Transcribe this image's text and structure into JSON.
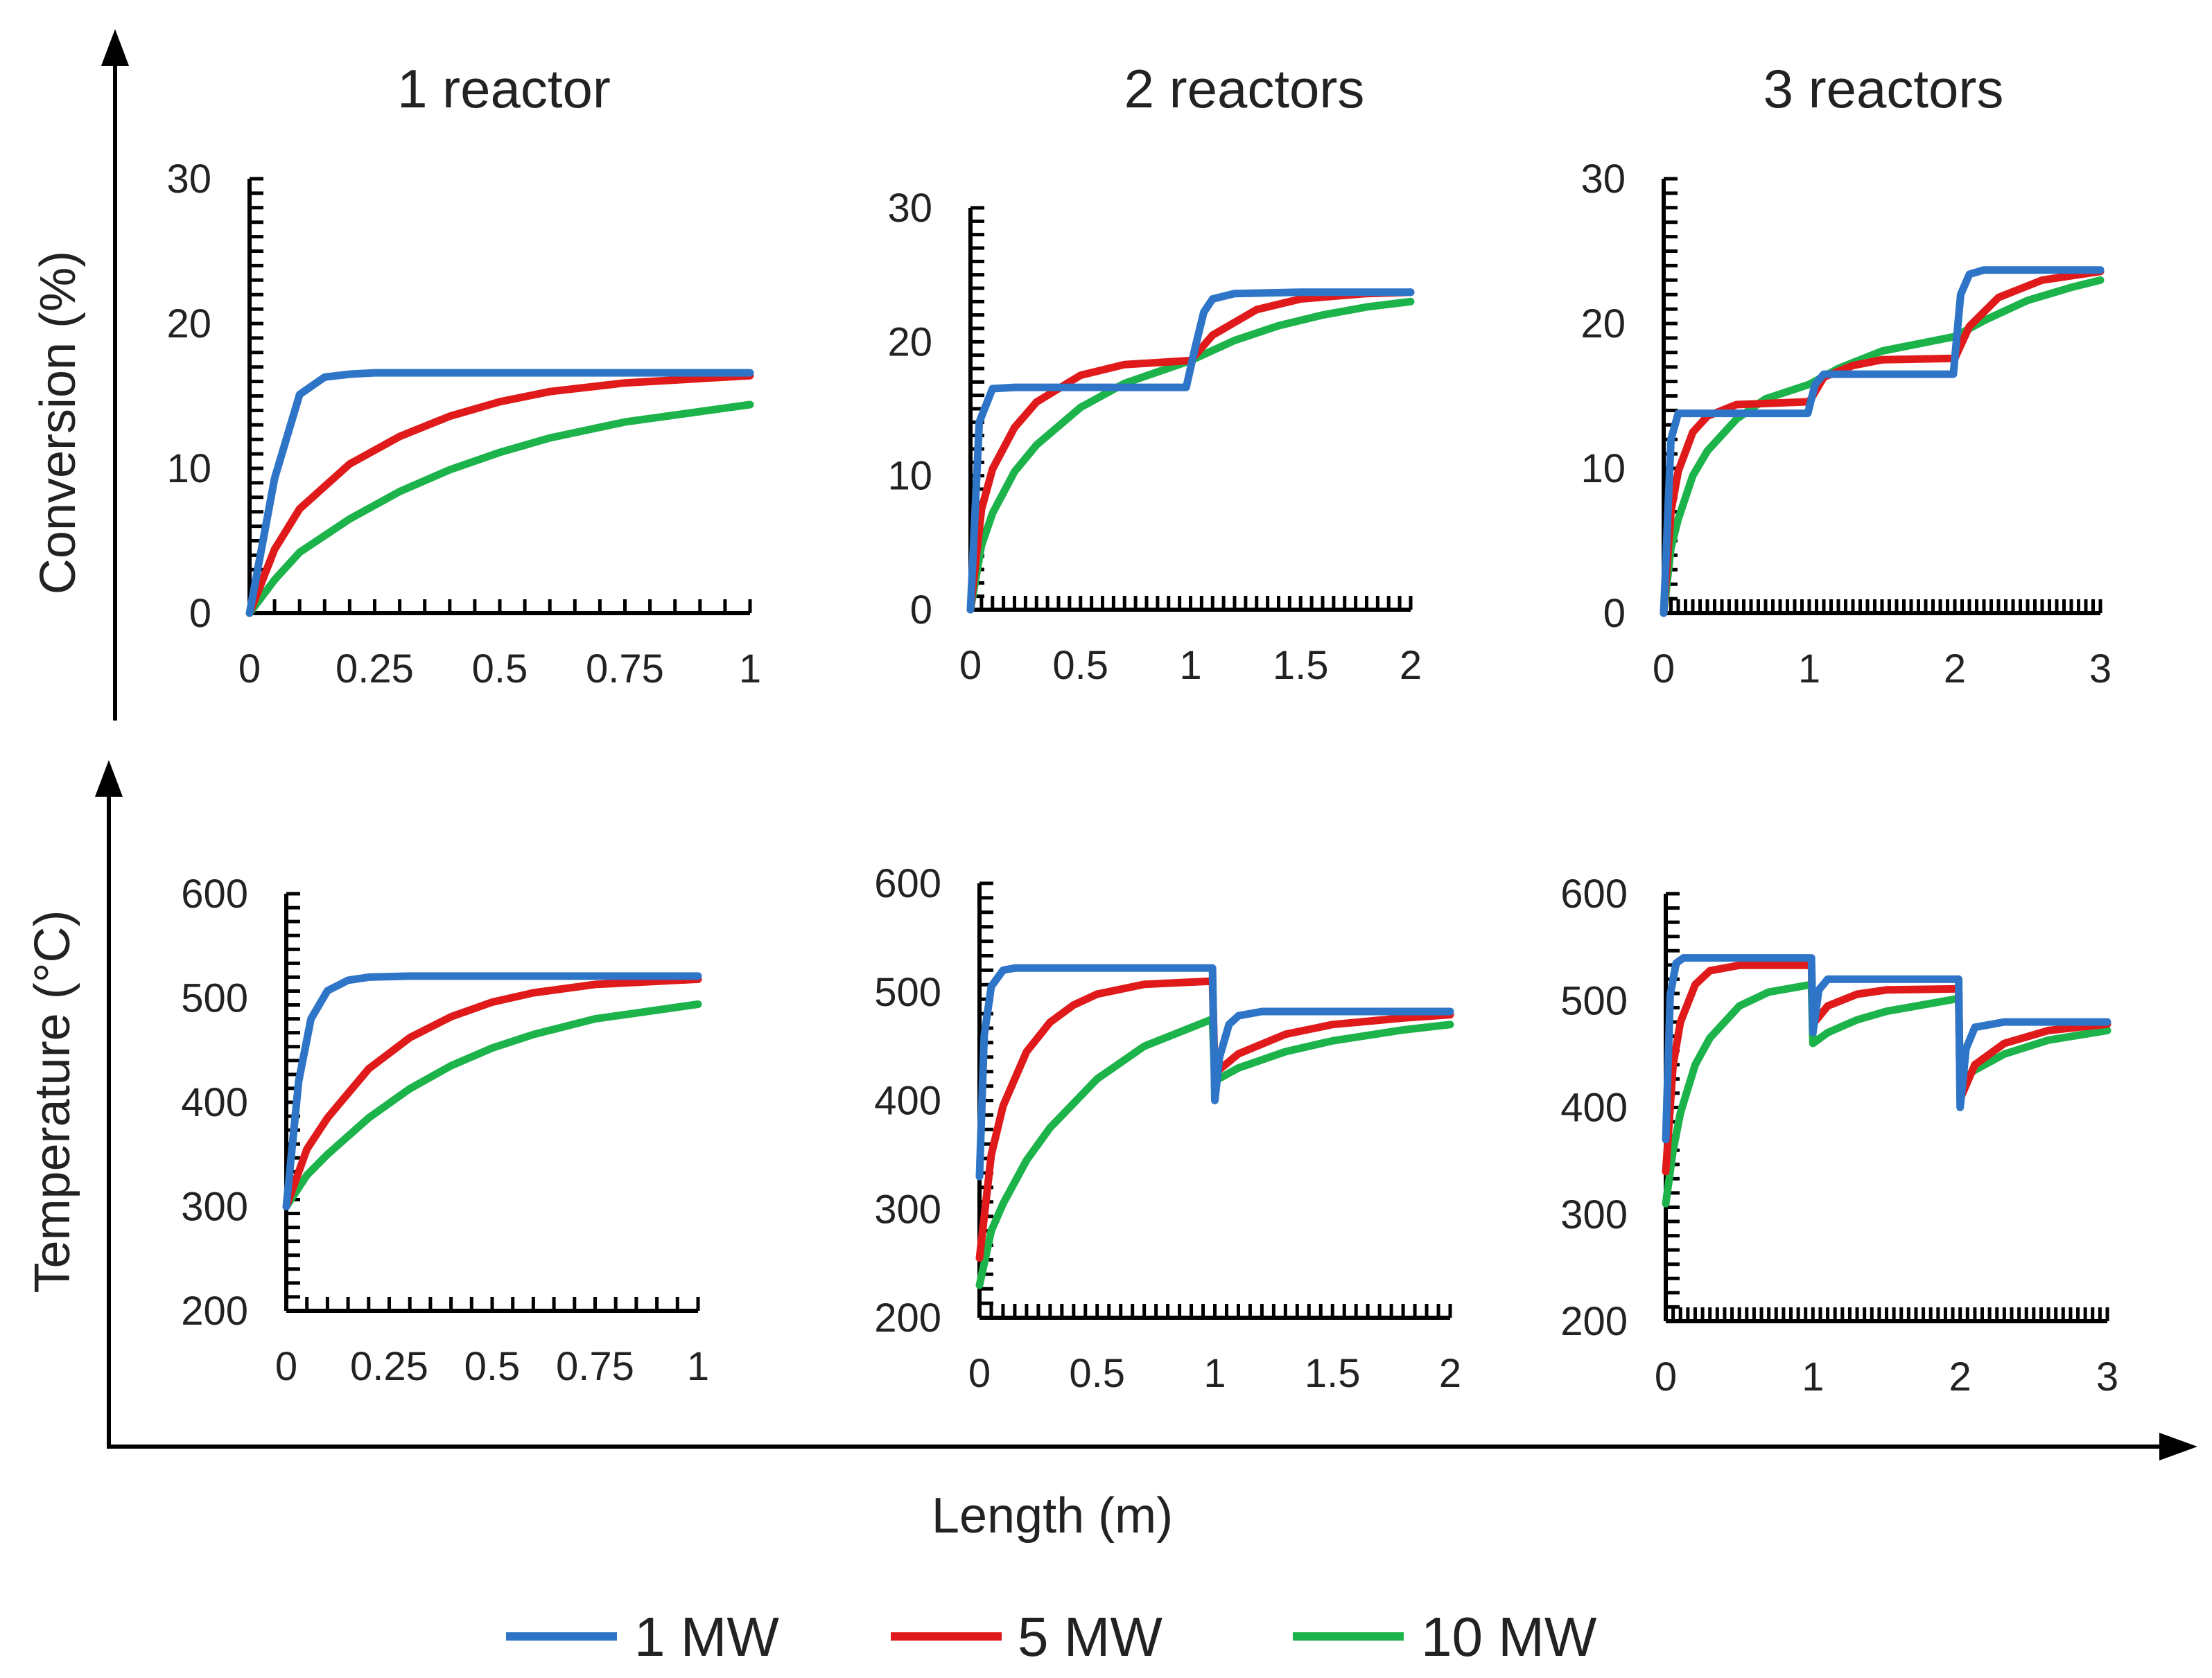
{
  "column_titles": [
    "1 reactor",
    "2 reactors",
    "3 reactors"
  ],
  "axis_titles": {
    "conversion": "Conversion (%)",
    "temperature": "Temperature (°C)",
    "length": "Length (m)"
  },
  "legend": [
    {
      "label": "1 MW",
      "color": "#2E75C8"
    },
    {
      "label": "5 MW",
      "color": "#E01A1A"
    },
    {
      "label": "10 MW",
      "color": "#1DB34B"
    }
  ],
  "chart_data": [
    {
      "type": "line",
      "title": "1 reactor",
      "xlabel": "Length (m)",
      "ylabel": "Conversion (%)",
      "xlim": [
        0,
        1
      ],
      "ylim": [
        0,
        30
      ],
      "xticks": [
        "0",
        "0.25",
        "0.5",
        "0.75",
        "1"
      ],
      "yticks": [
        "0",
        "10",
        "20",
        "30"
      ],
      "series": [
        {
          "name": "1 MW",
          "x": [
            0,
            0.05,
            0.1,
            0.15,
            0.2,
            0.25,
            0.5,
            0.75,
            1
          ],
          "y": [
            0,
            9.3,
            15.1,
            16.3,
            16.5,
            16.6,
            16.6,
            16.6,
            16.6
          ]
        },
        {
          "name": "5 MW",
          "x": [
            0,
            0.05,
            0.1,
            0.2,
            0.3,
            0.4,
            0.5,
            0.6,
            0.75,
            1
          ],
          "y": [
            0,
            4.4,
            7.2,
            10.3,
            12.2,
            13.6,
            14.6,
            15.3,
            15.9,
            16.4
          ]
        },
        {
          "name": "10 MW",
          "x": [
            0,
            0.05,
            0.1,
            0.2,
            0.3,
            0.4,
            0.5,
            0.6,
            0.75,
            1
          ],
          "y": [
            0,
            2.3,
            4.2,
            6.5,
            8.4,
            9.9,
            11.1,
            12.1,
            13.2,
            14.4
          ]
        }
      ]
    },
    {
      "type": "line",
      "title": "2 reactors",
      "xlabel": "Length (m)",
      "ylabel": "Conversion (%)",
      "xlim": [
        0,
        2
      ],
      "ylim": [
        0,
        30
      ],
      "xticks": [
        "0",
        "0.5",
        "1",
        "1.5",
        "2"
      ],
      "yticks": [
        "0",
        "10",
        "20",
        "30"
      ],
      "series": [
        {
          "name": "1 MW",
          "x": [
            0,
            0.04,
            0.1,
            0.2,
            0.5,
            0.98,
            1.02,
            1.06,
            1.1,
            1.2,
            1.5,
            2
          ],
          "y": [
            0,
            14,
            16.5,
            16.6,
            16.6,
            16.6,
            19.5,
            22.2,
            23.2,
            23.6,
            23.7,
            23.7
          ]
        },
        {
          "name": "5 MW",
          "x": [
            0,
            0.05,
            0.1,
            0.2,
            0.3,
            0.5,
            0.7,
            1,
            1.1,
            1.3,
            1.5,
            1.8,
            2
          ],
          "y": [
            0,
            7.5,
            10.5,
            13.6,
            15.5,
            17.5,
            18.3,
            18.6,
            20.5,
            22.4,
            23.2,
            23.6,
            23.7
          ]
        },
        {
          "name": "10 MW",
          "x": [
            0,
            0.05,
            0.1,
            0.2,
            0.3,
            0.5,
            0.7,
            1,
            1.2,
            1.4,
            1.6,
            1.8,
            2
          ],
          "y": [
            0,
            4.8,
            7.2,
            10.3,
            12.3,
            15.1,
            16.9,
            18.6,
            20.1,
            21.2,
            22,
            22.6,
            23
          ]
        }
      ]
    },
    {
      "type": "line",
      "title": "3 reactors",
      "xlabel": "Length (m)",
      "ylabel": "Conversion (%)",
      "xlim": [
        0,
        3
      ],
      "ylim": [
        0,
        30
      ],
      "xticks": [
        "0",
        "1",
        "2",
        "3"
      ],
      "yticks": [
        "0",
        "10",
        "20",
        "30"
      ],
      "series": [
        {
          "name": "1 MW",
          "x": [
            0,
            0.05,
            0.1,
            0.5,
            0.99,
            1.04,
            1.1,
            1.5,
            1.99,
            2.04,
            2.1,
            2.2,
            2.5,
            3
          ],
          "y": [
            0,
            12,
            13.8,
            13.8,
            13.8,
            15.8,
            16.5,
            16.5,
            16.5,
            22,
            23.4,
            23.7,
            23.7,
            23.7
          ]
        },
        {
          "name": "5 MW",
          "x": [
            0,
            0.05,
            0.1,
            0.2,
            0.3,
            0.5,
            1,
            1.1,
            1.3,
            1.5,
            2,
            2.1,
            2.3,
            2.6,
            3
          ],
          "y": [
            0,
            7,
            9.8,
            12.5,
            13.6,
            14.4,
            14.6,
            16.3,
            17.1,
            17.5,
            17.6,
            19.8,
            21.8,
            23,
            23.6
          ]
        },
        {
          "name": "10 MW",
          "x": [
            0,
            0.05,
            0.1,
            0.2,
            0.3,
            0.5,
            0.7,
            1,
            1.2,
            1.5,
            2,
            2.2,
            2.5,
            2.8,
            3
          ],
          "y": [
            0,
            4.5,
            6.5,
            9.5,
            11.2,
            13.4,
            14.8,
            15.8,
            16.9,
            18.1,
            19.1,
            20.2,
            21.6,
            22.5,
            23
          ]
        }
      ]
    },
    {
      "type": "line",
      "title": "1 reactor",
      "xlabel": "Length (m)",
      "ylabel": "Temperature (°C)",
      "xlim": [
        0,
        1
      ],
      "ylim": [
        200,
        600
      ],
      "xticks": [
        "0",
        "0.25",
        "0.5",
        "0.75",
        "1"
      ],
      "yticks": [
        "200",
        "300",
        "400",
        "500",
        "600"
      ],
      "series": [
        {
          "name": "1 MW",
          "x": [
            0,
            0.03,
            0.06,
            0.1,
            0.15,
            0.2,
            0.3,
            0.5,
            1
          ],
          "y": [
            300,
            420,
            480,
            507,
            517,
            520,
            521,
            521,
            521
          ]
        },
        {
          "name": "5 MW",
          "x": [
            0,
            0.05,
            0.1,
            0.2,
            0.3,
            0.4,
            0.5,
            0.6,
            0.75,
            1
          ],
          "y": [
            300,
            355,
            385,
            432,
            462,
            482,
            496,
            505,
            513,
            518
          ]
        },
        {
          "name": "10 MW",
          "x": [
            0,
            0.05,
            0.1,
            0.2,
            0.3,
            0.4,
            0.5,
            0.6,
            0.75,
            1
          ],
          "y": [
            300,
            330,
            350,
            385,
            413,
            435,
            452,
            465,
            480,
            494
          ]
        }
      ]
    },
    {
      "type": "line",
      "title": "2 reactors",
      "xlabel": "Length (m)",
      "ylabel": "Temperature (°C)",
      "xlim": [
        0,
        2
      ],
      "ylim": [
        200,
        600
      ],
      "xticks": [
        "0",
        "0.5",
        "1",
        "1.5",
        "2"
      ],
      "yticks": [
        "200",
        "300",
        "400",
        "500",
        "600"
      ],
      "series": [
        {
          "name": "1 MW",
          "x": [
            0,
            0.02,
            0.05,
            0.1,
            0.15,
            0.3,
            0.5,
            0.99,
            1.0,
            1.02,
            1.06,
            1.1,
            1.2,
            1.5,
            2
          ],
          "y": [
            330,
            460,
            505,
            520,
            522,
            522,
            522,
            522,
            400,
            440,
            470,
            478,
            482,
            482,
            482
          ]
        },
        {
          "name": "5 MW",
          "x": [
            0,
            0.05,
            0.1,
            0.2,
            0.3,
            0.4,
            0.5,
            0.7,
            0.99,
            1.0,
            1.1,
            1.3,
            1.5,
            1.8,
            2
          ],
          "y": [
            255,
            350,
            395,
            445,
            472,
            488,
            498,
            507,
            510,
            425,
            443,
            461,
            470,
            476,
            479
          ]
        },
        {
          "name": "10 MW",
          "x": [
            0,
            0.05,
            0.1,
            0.2,
            0.3,
            0.5,
            0.7,
            0.99,
            1.0,
            1.1,
            1.3,
            1.5,
            1.8,
            2
          ],
          "y": [
            230,
            280,
            305,
            345,
            375,
            420,
            450,
            475,
            418,
            430,
            445,
            455,
            465,
            470
          ]
        }
      ]
    },
    {
      "type": "line",
      "title": "3 reactors",
      "xlabel": "Length (m)",
      "ylabel": "Temperature (°C)",
      "xlim": [
        0,
        3
      ],
      "ylim": [
        200,
        600
      ],
      "xticks": [
        "0",
        "1",
        "2",
        "3"
      ],
      "yticks": [
        "200",
        "300",
        "400",
        "500",
        "600"
      ],
      "series": [
        {
          "name": "1 MW",
          "x": [
            0,
            0.03,
            0.07,
            0.12,
            0.3,
            0.99,
            1.0,
            1.04,
            1.1,
            1.5,
            1.99,
            2.0,
            2.04,
            2.1,
            2.3,
            3
          ],
          "y": [
            370,
            505,
            535,
            540,
            540,
            540,
            470,
            510,
            520,
            520,
            520,
            400,
            455,
            475,
            480,
            480
          ]
        },
        {
          "name": "5 MW",
          "x": [
            0,
            0.05,
            0.1,
            0.2,
            0.3,
            0.5,
            0.99,
            1.0,
            1.1,
            1.3,
            1.5,
            1.99,
            2.0,
            2.1,
            2.3,
            2.6,
            3
          ],
          "y": [
            340,
            440,
            480,
            515,
            528,
            533,
            533,
            478,
            495,
            506,
            510,
            511,
            408,
            440,
            460,
            472,
            478
          ]
        },
        {
          "name": "10 MW",
          "x": [
            0,
            0.05,
            0.1,
            0.2,
            0.3,
            0.5,
            0.7,
            0.99,
            1.0,
            1.1,
            1.3,
            1.5,
            1.99,
            2.0,
            2.1,
            2.3,
            2.6,
            3
          ],
          "y": [
            310,
            360,
            395,
            440,
            465,
            495,
            508,
            515,
            460,
            470,
            482,
            490,
            502,
            425,
            435,
            450,
            463,
            472
          ]
        }
      ]
    }
  ]
}
